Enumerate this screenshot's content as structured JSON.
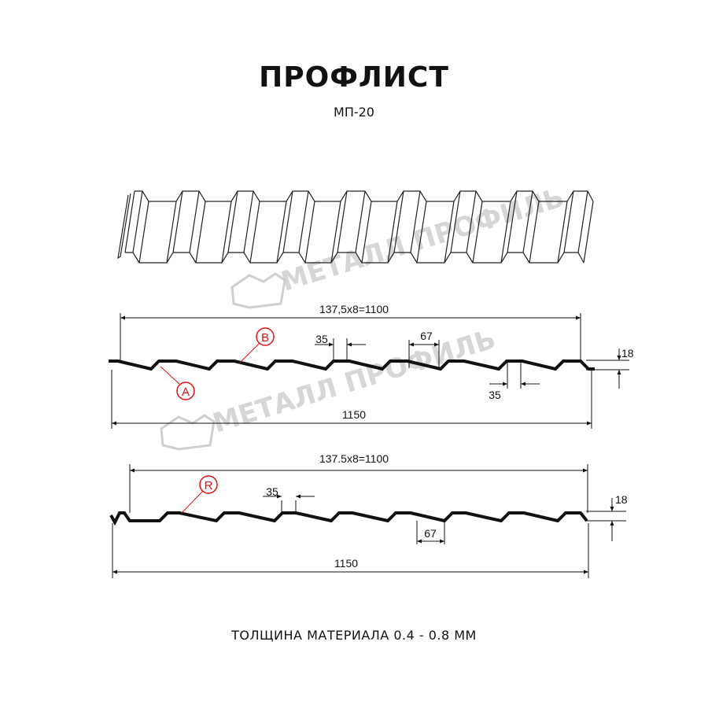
{
  "header": {
    "title": "ПРОФЛИСТ",
    "subtitle": "МП-20"
  },
  "watermark": {
    "text": "МЕТАЛЛ ПРОФИЛЬ"
  },
  "profile_a": {
    "pitch_label": "137,5x8=1100",
    "width_label": "1150",
    "rib_top_label": "35",
    "rib_bottom_label": "35",
    "spacing_label": "67",
    "height_label": "18",
    "marker_a": "A",
    "marker_b": "B"
  },
  "profile_b": {
    "pitch_label": "137.5x8=1100",
    "width_label": "1150",
    "rib_top_label": "35",
    "spacing_label": "67",
    "height_label": "18",
    "marker_r": "R"
  },
  "footer": {
    "text": "ТОЛЩИНА МАТЕРИАЛА 0.4 - 0.8 ММ"
  },
  "colors": {
    "line": "#111111",
    "marker": "#e01010",
    "watermark": "#c8c8c8"
  }
}
